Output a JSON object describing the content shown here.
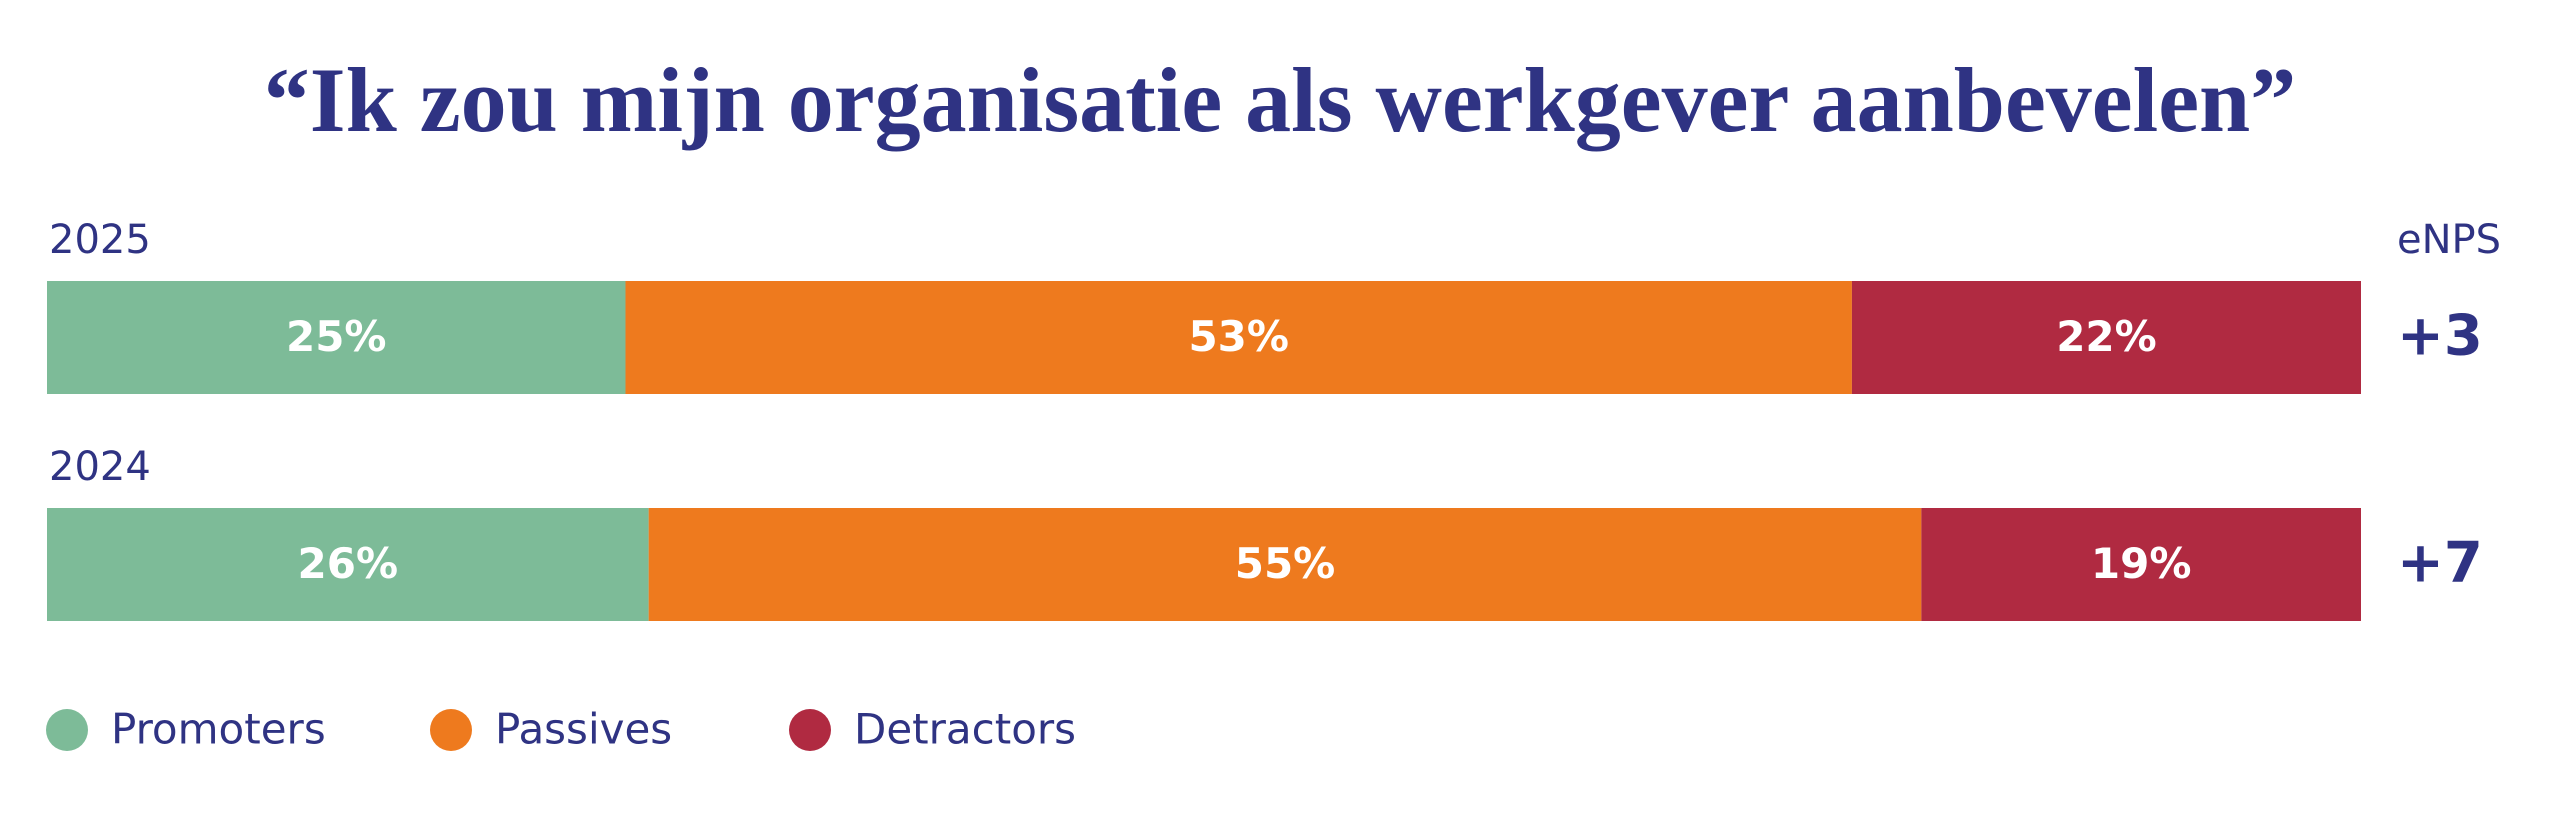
{
  "chart_data": {
    "type": "stacked-bar",
    "orientation": "horizontal",
    "title": "“Ik zou mijn organisatie als werkgever aanbevelen”",
    "categories": [
      "2025",
      "2024"
    ],
    "xlim": [
      0,
      100
    ],
    "series": [
      {
        "name": "Promoters",
        "color": "#7dbb98",
        "values": [
          25,
          26
        ],
        "value_labels": [
          "25%",
          "26%"
        ]
      },
      {
        "name": "Passives",
        "color": "#ee7a1e",
        "values": [
          53,
          55
        ],
        "value_labels": [
          "53%",
          "55%"
        ]
      },
      {
        "name": "Detractors",
        "color": "#b02a41",
        "values": [
          22,
          19
        ],
        "value_labels": [
          "22%",
          "19%"
        ]
      }
    ],
    "enps": {
      "label": "eNPS",
      "values": [
        3,
        7
      ],
      "value_labels": [
        "+3",
        "+7"
      ]
    },
    "legend": "bottom-left"
  }
}
